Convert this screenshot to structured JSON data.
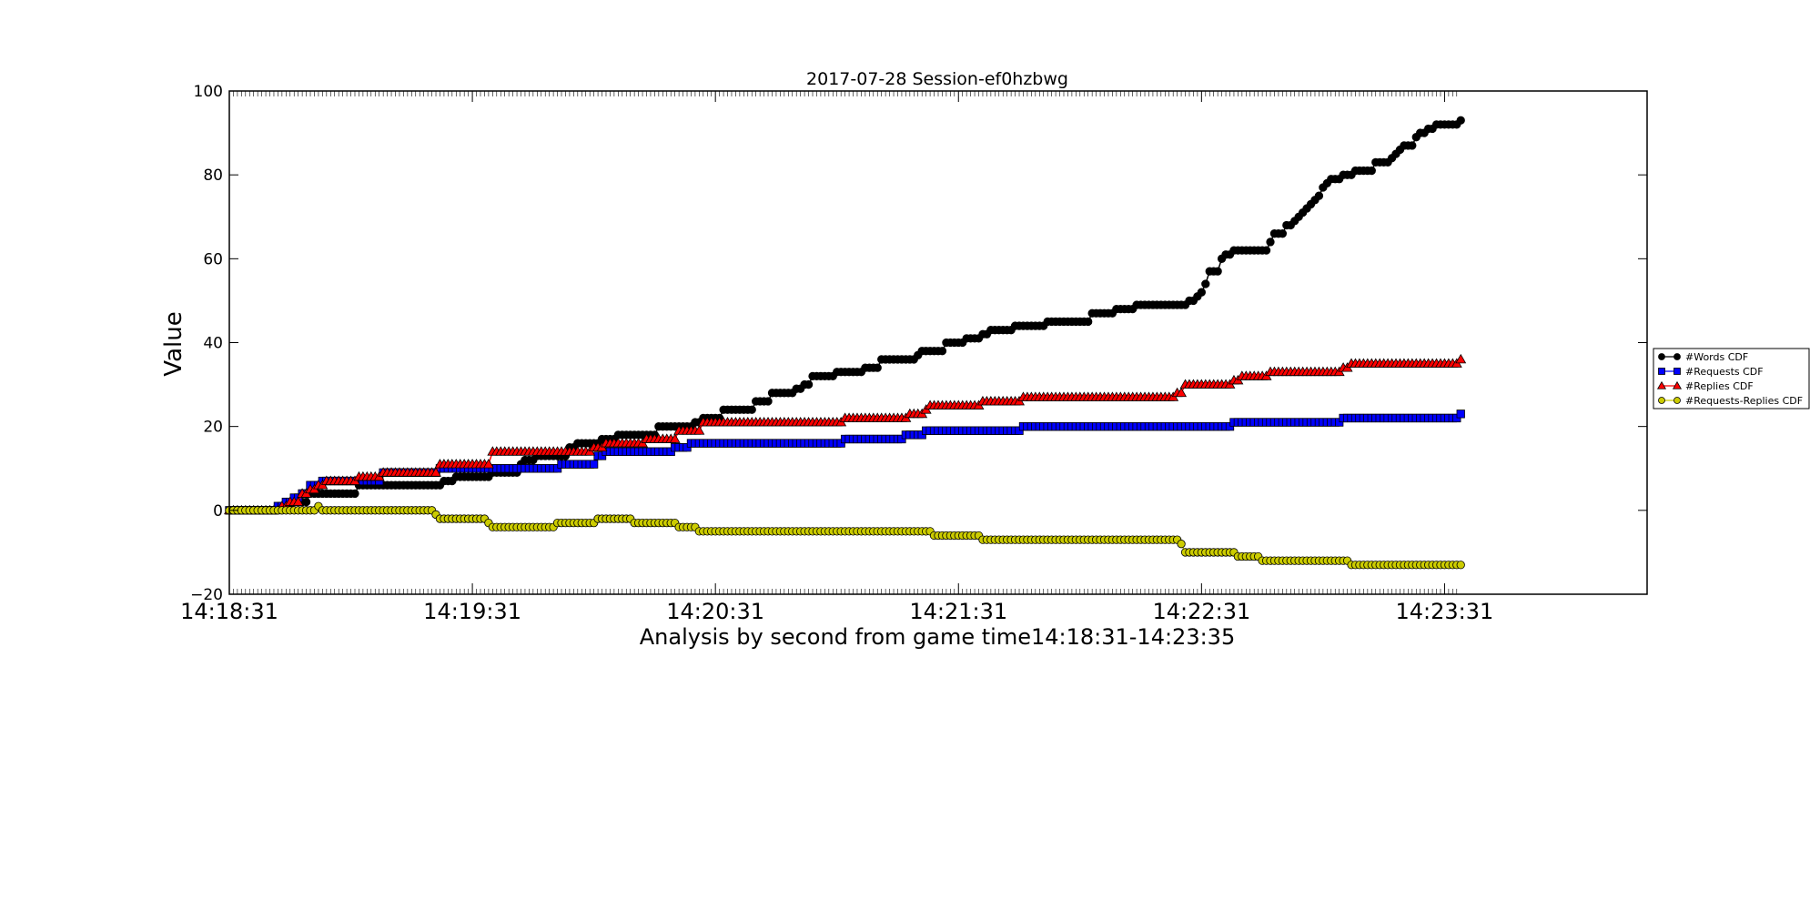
{
  "chart_data": {
    "type": "line",
    "title": "2017-07-28 Session-ef0hzbwg",
    "xlabel": "Analysis by second from game time14:18:31-14:23:35",
    "ylabel": "Value",
    "x_unit": "seconds after 14:18:31",
    "xlim": [
      0,
      350
    ],
    "ylim": [
      -20,
      100
    ],
    "x_ticks": [
      {
        "value": 0,
        "label": "14:18:31"
      },
      {
        "value": 60,
        "label": "14:19:31"
      },
      {
        "value": 120,
        "label": "14:20:31"
      },
      {
        "value": 180,
        "label": "14:21:31"
      },
      {
        "value": 240,
        "label": "14:22:31"
      },
      {
        "value": 300,
        "label": "14:23:31"
      }
    ],
    "y_ticks": [
      {
        "value": -20,
        "label": "−20"
      },
      {
        "value": 0,
        "label": "0"
      },
      {
        "value": 20,
        "label": "20"
      },
      {
        "value": 40,
        "label": "40"
      },
      {
        "value": 60,
        "label": "60"
      },
      {
        "value": 80,
        "label": "80"
      },
      {
        "value": 100,
        "label": "100"
      }
    ],
    "x_end": 304,
    "grid": false,
    "legend_position": "outside-right",
    "series": [
      {
        "name": "#Words CDF",
        "color": "#000000",
        "marker": "circle",
        "steps": [
          [
            0,
            0
          ],
          [
            12,
            1
          ],
          [
            16,
            2
          ],
          [
            20,
            4
          ],
          [
            32,
            6
          ],
          [
            53,
            7
          ],
          [
            56,
            8
          ],
          [
            65,
            9
          ],
          [
            72,
            11
          ],
          [
            73,
            12
          ],
          [
            76,
            13
          ],
          [
            84,
            15
          ],
          [
            86,
            16
          ],
          [
            92,
            17
          ],
          [
            96,
            18
          ],
          [
            106,
            20
          ],
          [
            115,
            21
          ],
          [
            117,
            22
          ],
          [
            122,
            24
          ],
          [
            130,
            26
          ],
          [
            134,
            28
          ],
          [
            140,
            29
          ],
          [
            142,
            30
          ],
          [
            144,
            32
          ],
          [
            150,
            33
          ],
          [
            157,
            34
          ],
          [
            161,
            36
          ],
          [
            170,
            37
          ],
          [
            171,
            38
          ],
          [
            177,
            40
          ],
          [
            182,
            41
          ],
          [
            186,
            42
          ],
          [
            188,
            43
          ],
          [
            194,
            44
          ],
          [
            202,
            45
          ],
          [
            213,
            47
          ],
          [
            219,
            48
          ],
          [
            224,
            49
          ],
          [
            237,
            50
          ],
          [
            239,
            51
          ],
          [
            240,
            52
          ],
          [
            241,
            54
          ],
          [
            242,
            57
          ],
          [
            245,
            60
          ],
          [
            246,
            61
          ],
          [
            248,
            62
          ],
          [
            257,
            64
          ],
          [
            258,
            66
          ],
          [
            261,
            68
          ],
          [
            263,
            69
          ],
          [
            264,
            70
          ],
          [
            265,
            71
          ],
          [
            266,
            72
          ],
          [
            267,
            73
          ],
          [
            268,
            74
          ],
          [
            269,
            75
          ],
          [
            270,
            77
          ],
          [
            271,
            78
          ],
          [
            272,
            79
          ],
          [
            275,
            80
          ],
          [
            278,
            81
          ],
          [
            283,
            83
          ],
          [
            287,
            84
          ],
          [
            288,
            85
          ],
          [
            289,
            86
          ],
          [
            290,
            87
          ],
          [
            293,
            89
          ],
          [
            294,
            90
          ],
          [
            296,
            91
          ],
          [
            298,
            92
          ],
          [
            304,
            93
          ]
        ]
      },
      {
        "name": "#Requests CDF",
        "color": "#0000ff",
        "marker": "square",
        "steps": [
          [
            0,
            0
          ],
          [
            12,
            1
          ],
          [
            14,
            2
          ],
          [
            16,
            3
          ],
          [
            18,
            4
          ],
          [
            20,
            6
          ],
          [
            23,
            7
          ],
          [
            38,
            8
          ],
          [
            37,
            9
          ],
          [
            52,
            10
          ],
          [
            82,
            11
          ],
          [
            91,
            13
          ],
          [
            93,
            14
          ],
          [
            110,
            15
          ],
          [
            114,
            16
          ],
          [
            152,
            17
          ],
          [
            167,
            18
          ],
          [
            172,
            19
          ],
          [
            196,
            20
          ],
          [
            248,
            21
          ],
          [
            275,
            22
          ],
          [
            304,
            23
          ]
        ]
      },
      {
        "name": "#Replies CDF",
        "color": "#ff0000",
        "marker": "triangle",
        "steps": [
          [
            0,
            0
          ],
          [
            13,
            1
          ],
          [
            15,
            2
          ],
          [
            18,
            4
          ],
          [
            20,
            5
          ],
          [
            22,
            6
          ],
          [
            24,
            7
          ],
          [
            32,
            8
          ],
          [
            38,
            9
          ],
          [
            52,
            11
          ],
          [
            65,
            14
          ],
          [
            90,
            15
          ],
          [
            93,
            16
          ],
          [
            103,
            17
          ],
          [
            111,
            19
          ],
          [
            117,
            21
          ],
          [
            152,
            22
          ],
          [
            168,
            23
          ],
          [
            172,
            24
          ],
          [
            173,
            25
          ],
          [
            186,
            26
          ],
          [
            196,
            27
          ],
          [
            234,
            28
          ],
          [
            236,
            30
          ],
          [
            248,
            31
          ],
          [
            250,
            32
          ],
          [
            257,
            33
          ],
          [
            275,
            34
          ],
          [
            277,
            35
          ],
          [
            304,
            36
          ]
        ]
      },
      {
        "name": "#Requests-Replies CDF",
        "color": "#cccc00",
        "marker": "circle",
        "steps": [
          [
            0,
            0
          ],
          [
            22,
            1
          ],
          [
            23,
            0
          ],
          [
            51,
            -1
          ],
          [
            52,
            -2
          ],
          [
            64,
            -3
          ],
          [
            65,
            -4
          ],
          [
            81,
            -3
          ],
          [
            91,
            -2
          ],
          [
            100,
            -3
          ],
          [
            111,
            -4
          ],
          [
            116,
            -5
          ],
          [
            174,
            -6
          ],
          [
            186,
            -7
          ],
          [
            235,
            -8
          ],
          [
            236,
            -10
          ],
          [
            249,
            -11
          ],
          [
            255,
            -12
          ],
          [
            277,
            -13
          ],
          [
            304,
            -13
          ]
        ]
      }
    ]
  }
}
